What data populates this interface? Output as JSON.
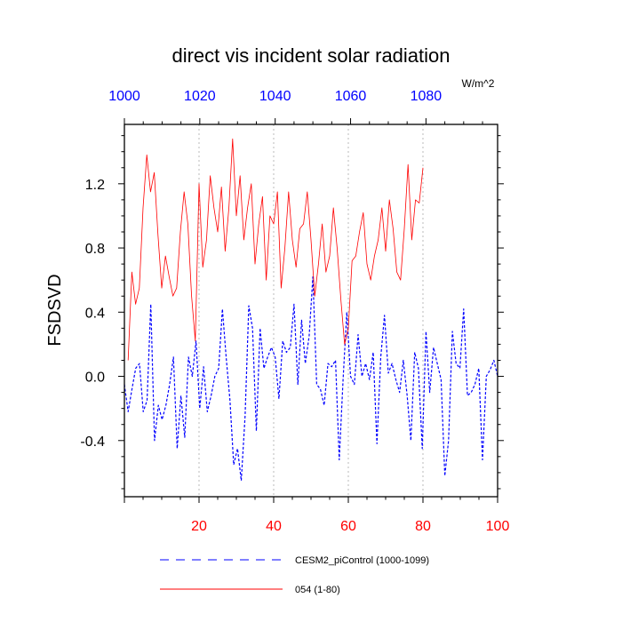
{
  "chart_data": {
    "type": "line",
    "title": "direct vis incident solar radiation",
    "ylabel": "FSDSVD",
    "units_label": "W/m^2",
    "ylim": [
      -0.75,
      1.57
    ],
    "yticks": [
      -0.4,
      0.0,
      0.4,
      0.8,
      1.2
    ],
    "ytick_labels": [
      "-0.4",
      "0.0",
      "0.4",
      "0.8",
      "1.2"
    ],
    "bottom_axis": {
      "range": [
        0,
        100
      ],
      "ticks": [
        20,
        40,
        60,
        80,
        100
      ],
      "tick_labels": [
        "20",
        "40",
        "60",
        "80",
        "100"
      ],
      "color": "#ff0000"
    },
    "top_axis": {
      "range": [
        1000,
        1099
      ],
      "ticks": [
        1000,
        1020,
        1040,
        1060,
        1080
      ],
      "tick_labels": [
        "1000",
        "1020",
        "1040",
        "1060",
        "1080"
      ],
      "color": "#0000ff"
    },
    "vgrid": [
      20,
      40,
      60,
      80
    ],
    "series": [
      {
        "name": "CESM2_piControl (1000-1099)",
        "color": "#0000ff",
        "dash": "dashed",
        "axis": "top",
        "x_start": 1000,
        "values": [
          -0.05,
          -0.22,
          -0.08,
          0.05,
          0.08,
          -0.22,
          -0.15,
          0.45,
          -0.4,
          -0.18,
          -0.27,
          -0.18,
          -0.05,
          0.12,
          -0.45,
          -0.12,
          -0.38,
          0.12,
          0.0,
          0.22,
          -0.2,
          0.06,
          -0.22,
          -0.12,
          0.0,
          0.05,
          0.42,
          0.12,
          -0.15,
          -0.55,
          -0.45,
          -0.65,
          -0.25,
          0.44,
          0.3,
          -0.34,
          0.3,
          0.05,
          0.12,
          0.18,
          0.12,
          -0.14,
          0.22,
          0.15,
          0.18,
          0.45,
          -0.05,
          0.35,
          0.08,
          0.25,
          0.62,
          -0.05,
          -0.08,
          -0.18,
          0.08,
          0.06,
          0.1,
          -0.52,
          -0.02,
          0.4,
          0.0,
          -0.05,
          0.26,
          0.0,
          0.08,
          -0.02,
          0.15,
          -0.42,
          0.12,
          0.38,
          0.02,
          0.08,
          -0.02,
          -0.1,
          0.1,
          -0.12,
          -0.4,
          0.15,
          0.05,
          -0.45,
          0.28,
          -0.1,
          0.18,
          0.08,
          -0.02,
          -0.62,
          -0.4,
          0.28,
          0.08,
          0.05,
          0.42,
          -0.12,
          -0.1,
          -0.05,
          0.05,
          -0.52,
          0.0,
          0.04,
          0.1,
          0.0
        ]
      },
      {
        "name": "054 (1-80)",
        "color": "#ff0000",
        "dash": "solid",
        "axis": "bottom",
        "x_start": 1,
        "values": [
          0.1,
          0.65,
          0.45,
          0.55,
          1.05,
          1.38,
          1.15,
          1.27,
          0.88,
          0.55,
          0.75,
          0.62,
          0.5,
          0.55,
          0.9,
          1.15,
          0.95,
          0.5,
          0.22,
          1.2,
          0.68,
          0.85,
          1.25,
          1.05,
          0.9,
          1.18,
          0.78,
          1.05,
          1.48,
          1.0,
          1.25,
          0.85,
          1.05,
          1.2,
          0.7,
          0.95,
          1.12,
          0.6,
          1.0,
          0.95,
          1.15,
          0.55,
          0.8,
          1.15,
          0.85,
          0.68,
          0.92,
          0.95,
          1.15,
          0.85,
          0.5,
          0.7,
          0.95,
          0.65,
          0.75,
          1.05,
          0.8,
          0.48,
          0.2,
          0.3,
          0.72,
          0.75,
          0.9,
          1.02,
          0.7,
          0.6,
          0.75,
          0.85,
          1.05,
          0.78,
          1.1,
          0.92,
          0.65,
          0.6,
          0.92,
          1.32,
          0.85,
          1.1,
          1.08,
          1.3
        ]
      }
    ]
  }
}
